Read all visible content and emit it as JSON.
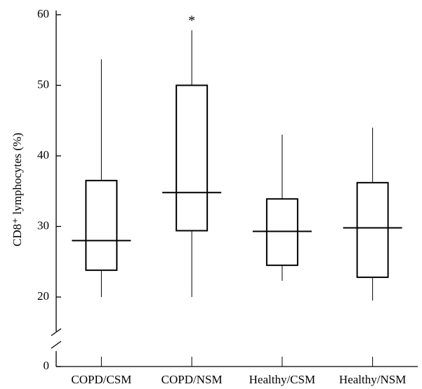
{
  "chart_data": {
    "type": "box",
    "y_label": "CD8⁺ lymphocytes (%)",
    "categories": [
      "COPD/CSM",
      "COPD/NSM",
      "Healthy/CSM",
      "Healthy/NSM"
    ],
    "boxes": [
      {
        "low": 20,
        "q1": 23.8,
        "median": 28,
        "q3": 36.5,
        "high": 53.7
      },
      {
        "low": 20,
        "q1": 29.4,
        "median": 34.8,
        "q3": 50,
        "high": 57.8
      },
      {
        "low": 22.3,
        "q1": 24.5,
        "median": 29.3,
        "q3": 33.9,
        "high": 43
      },
      {
        "low": 19,
        "q1": 22.8,
        "median": 29.8,
        "q3": 36.2,
        "high": 44
      }
    ],
    "annotations": [
      {
        "text": "*",
        "category": 1
      }
    ],
    "ylim": [
      0,
      60
    ],
    "yticks": [
      0,
      20,
      30,
      40,
      50,
      60
    ],
    "axis_break": true,
    "color": "#000000"
  }
}
